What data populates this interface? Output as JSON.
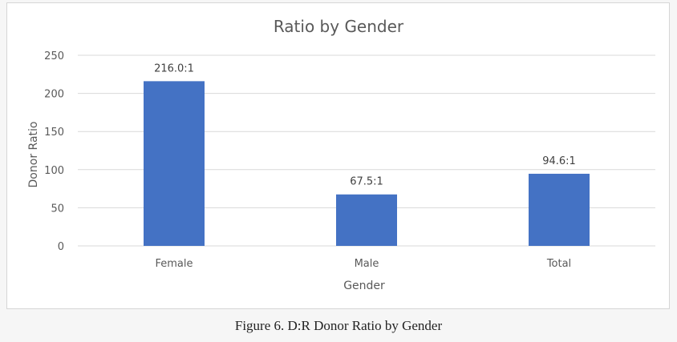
{
  "chart_data": {
    "type": "bar",
    "title": "Ratio by Gender",
    "xlabel": "Gender",
    "ylabel": "Donor Ratio",
    "categories": [
      "Female",
      "Male",
      "Total"
    ],
    "values": [
      216.0,
      67.5,
      94.6
    ],
    "data_labels": [
      "216.0:1",
      "67.5:1",
      "94.6:1"
    ],
    "ylim": [
      0,
      250
    ],
    "yticks": [
      0,
      50,
      100,
      150,
      200,
      250
    ],
    "grid": true,
    "legend": "none",
    "bar_color": "#4472c4"
  },
  "caption": "Figure 6. D:R Donor Ratio by Gender"
}
